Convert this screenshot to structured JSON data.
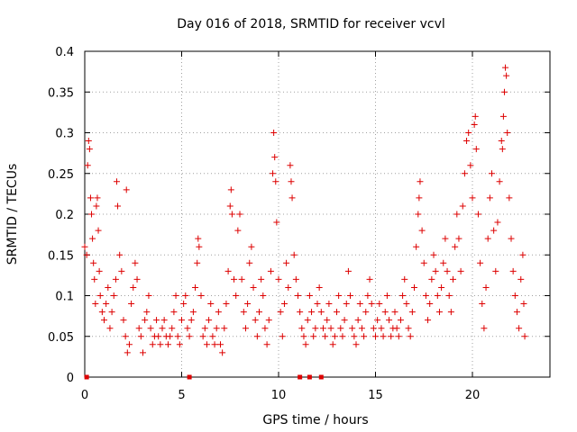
{
  "chart_data": {
    "type": "scatter",
    "title": "Day 016 of 2018, SRMTID for receiver vcvl",
    "xlabel": "GPS time / hours",
    "ylabel": "SRMTID / TECUs",
    "xlim": [
      0,
      24
    ],
    "ylim": [
      0,
      0.4
    ],
    "xticks": [
      0,
      5,
      10,
      15,
      20
    ],
    "xtick_labels": [
      "0",
      "5",
      "10",
      "15",
      "20"
    ],
    "yticks": [
      0,
      0.05,
      0.1,
      0.15,
      0.2,
      0.25,
      0.3,
      0.35,
      0.4
    ],
    "ytick_labels": [
      "0",
      "0.05",
      "0.1",
      "0.15",
      "0.2",
      "0.25",
      "0.3",
      "0.35",
      "0.4"
    ],
    "grid": true,
    "series": [
      {
        "name": "SRMTID",
        "color": "#dd0000",
        "marker": "plus",
        "points": [
          [
            0.0,
            0.16
          ],
          [
            0.1,
            0.15
          ],
          [
            0.15,
            0.26
          ],
          [
            0.2,
            0.29
          ],
          [
            0.25,
            0.28
          ],
          [
            0.3,
            0.22
          ],
          [
            0.35,
            0.2
          ],
          [
            0.4,
            0.17
          ],
          [
            0.45,
            0.14
          ],
          [
            0.5,
            0.12
          ],
          [
            0.55,
            0.09
          ],
          [
            0.6,
            0.21
          ],
          [
            0.65,
            0.22
          ],
          [
            0.7,
            0.18
          ],
          [
            0.75,
            0.13
          ],
          [
            0.8,
            0.1
          ],
          [
            0.9,
            0.08
          ],
          [
            1.0,
            0.07
          ],
          [
            1.1,
            0.09
          ],
          [
            1.2,
            0.11
          ],
          [
            1.3,
            0.06
          ],
          [
            1.4,
            0.08
          ],
          [
            1.5,
            0.1
          ],
          [
            1.6,
            0.12
          ],
          [
            1.65,
            0.24
          ],
          [
            1.7,
            0.21
          ],
          [
            1.8,
            0.15
          ],
          [
            1.9,
            0.13
          ],
          [
            2.0,
            0.07
          ],
          [
            2.1,
            0.05
          ],
          [
            2.15,
            0.23
          ],
          [
            2.2,
            0.03
          ],
          [
            2.3,
            0.04
          ],
          [
            2.4,
            0.09
          ],
          [
            2.5,
            0.11
          ],
          [
            2.6,
            0.14
          ],
          [
            2.7,
            0.12
          ],
          [
            2.8,
            0.06
          ],
          [
            2.9,
            0.05
          ],
          [
            3.0,
            0.03
          ],
          [
            3.1,
            0.07
          ],
          [
            3.2,
            0.08
          ],
          [
            3.3,
            0.1
          ],
          [
            3.4,
            0.06
          ],
          [
            3.5,
            0.04
          ],
          [
            3.6,
            0.05
          ],
          [
            3.7,
            0.07
          ],
          [
            3.8,
            0.05
          ],
          [
            3.9,
            0.04
          ],
          [
            4.0,
            0.06
          ],
          [
            4.1,
            0.07
          ],
          [
            4.2,
            0.05
          ],
          [
            4.3,
            0.04
          ],
          [
            4.4,
            0.05
          ],
          [
            4.5,
            0.06
          ],
          [
            4.6,
            0.08
          ],
          [
            4.7,
            0.1
          ],
          [
            4.8,
            0.05
          ],
          [
            4.9,
            0.04
          ],
          [
            5.0,
            0.07
          ],
          [
            5.1,
            0.09
          ],
          [
            5.2,
            0.1
          ],
          [
            5.3,
            0.06
          ],
          [
            5.4,
            0.05
          ],
          [
            5.5,
            0.07
          ],
          [
            5.6,
            0.08
          ],
          [
            5.7,
            0.11
          ],
          [
            5.8,
            0.14
          ],
          [
            5.85,
            0.17
          ],
          [
            5.9,
            0.16
          ],
          [
            6.0,
            0.1
          ],
          [
            6.1,
            0.05
          ],
          [
            6.2,
            0.06
          ],
          [
            6.3,
            0.04
          ],
          [
            6.4,
            0.07
          ],
          [
            6.5,
            0.09
          ],
          [
            6.6,
            0.05
          ],
          [
            6.7,
            0.04
          ],
          [
            6.8,
            0.06
          ],
          [
            6.9,
            0.08
          ],
          [
            7.0,
            0.04
          ],
          [
            7.1,
            0.03
          ],
          [
            7.2,
            0.06
          ],
          [
            7.3,
            0.09
          ],
          [
            7.4,
            0.13
          ],
          [
            7.5,
            0.21
          ],
          [
            7.55,
            0.23
          ],
          [
            7.6,
            0.2
          ],
          [
            7.7,
            0.12
          ],
          [
            7.8,
            0.1
          ],
          [
            7.9,
            0.18
          ],
          [
            8.0,
            0.2
          ],
          [
            8.1,
            0.12
          ],
          [
            8.2,
            0.08
          ],
          [
            8.3,
            0.06
          ],
          [
            8.4,
            0.09
          ],
          [
            8.5,
            0.14
          ],
          [
            8.6,
            0.16
          ],
          [
            8.7,
            0.11
          ],
          [
            8.8,
            0.07
          ],
          [
            8.9,
            0.05
          ],
          [
            9.0,
            0.08
          ],
          [
            9.1,
            0.12
          ],
          [
            9.2,
            0.1
          ],
          [
            9.3,
            0.06
          ],
          [
            9.4,
            0.04
          ],
          [
            9.5,
            0.07
          ],
          [
            9.6,
            0.13
          ],
          [
            9.7,
            0.25
          ],
          [
            9.75,
            0.3
          ],
          [
            9.8,
            0.27
          ],
          [
            9.85,
            0.24
          ],
          [
            9.9,
            0.19
          ],
          [
            10.0,
            0.12
          ],
          [
            10.1,
            0.08
          ],
          [
            10.2,
            0.05
          ],
          [
            10.3,
            0.09
          ],
          [
            10.4,
            0.14
          ],
          [
            10.5,
            0.11
          ],
          [
            10.6,
            0.26
          ],
          [
            10.65,
            0.24
          ],
          [
            10.7,
            0.22
          ],
          [
            10.8,
            0.15
          ],
          [
            10.9,
            0.12
          ],
          [
            11.0,
            0.1
          ],
          [
            11.1,
            0.08
          ],
          [
            11.2,
            0.06
          ],
          [
            11.3,
            0.05
          ],
          [
            11.4,
            0.04
          ],
          [
            11.5,
            0.07
          ],
          [
            11.6,
            0.1
          ],
          [
            11.7,
            0.08
          ],
          [
            11.8,
            0.05
          ],
          [
            11.9,
            0.06
          ],
          [
            12.0,
            0.09
          ],
          [
            12.1,
            0.11
          ],
          [
            12.2,
            0.08
          ],
          [
            12.3,
            0.06
          ],
          [
            12.4,
            0.05
          ],
          [
            12.5,
            0.07
          ],
          [
            12.6,
            0.09
          ],
          [
            12.7,
            0.06
          ],
          [
            12.8,
            0.04
          ],
          [
            12.9,
            0.05
          ],
          [
            13.0,
            0.08
          ],
          [
            13.1,
            0.1
          ],
          [
            13.2,
            0.06
          ],
          [
            13.3,
            0.05
          ],
          [
            13.4,
            0.07
          ],
          [
            13.5,
            0.09
          ],
          [
            13.6,
            0.13
          ],
          [
            13.7,
            0.1
          ],
          [
            13.8,
            0.06
          ],
          [
            13.9,
            0.05
          ],
          [
            14.0,
            0.04
          ],
          [
            14.1,
            0.07
          ],
          [
            14.2,
            0.09
          ],
          [
            14.3,
            0.06
          ],
          [
            14.4,
            0.05
          ],
          [
            14.5,
            0.08
          ],
          [
            14.6,
            0.1
          ],
          [
            14.7,
            0.12
          ],
          [
            14.8,
            0.09
          ],
          [
            14.9,
            0.06
          ],
          [
            15.0,
            0.05
          ],
          [
            15.1,
            0.07
          ],
          [
            15.2,
            0.09
          ],
          [
            15.3,
            0.06
          ],
          [
            15.4,
            0.05
          ],
          [
            15.5,
            0.08
          ],
          [
            15.6,
            0.1
          ],
          [
            15.7,
            0.07
          ],
          [
            15.8,
            0.05
          ],
          [
            15.9,
            0.06
          ],
          [
            16.0,
            0.08
          ],
          [
            16.1,
            0.06
          ],
          [
            16.2,
            0.05
          ],
          [
            16.3,
            0.07
          ],
          [
            16.4,
            0.1
          ],
          [
            16.5,
            0.12
          ],
          [
            16.6,
            0.09
          ],
          [
            16.7,
            0.06
          ],
          [
            16.8,
            0.05
          ],
          [
            16.9,
            0.08
          ],
          [
            17.0,
            0.11
          ],
          [
            17.1,
            0.16
          ],
          [
            17.2,
            0.2
          ],
          [
            17.25,
            0.22
          ],
          [
            17.3,
            0.24
          ],
          [
            17.4,
            0.18
          ],
          [
            17.5,
            0.14
          ],
          [
            17.6,
            0.1
          ],
          [
            17.7,
            0.07
          ],
          [
            17.8,
            0.09
          ],
          [
            17.9,
            0.12
          ],
          [
            18.0,
            0.15
          ],
          [
            18.1,
            0.13
          ],
          [
            18.2,
            0.1
          ],
          [
            18.3,
            0.08
          ],
          [
            18.4,
            0.11
          ],
          [
            18.5,
            0.14
          ],
          [
            18.6,
            0.17
          ],
          [
            18.7,
            0.13
          ],
          [
            18.8,
            0.1
          ],
          [
            18.9,
            0.08
          ],
          [
            19.0,
            0.12
          ],
          [
            19.1,
            0.16
          ],
          [
            19.2,
            0.2
          ],
          [
            19.3,
            0.17
          ],
          [
            19.4,
            0.13
          ],
          [
            19.5,
            0.21
          ],
          [
            19.6,
            0.25
          ],
          [
            19.7,
            0.29
          ],
          [
            19.8,
            0.3
          ],
          [
            19.9,
            0.26
          ],
          [
            20.0,
            0.22
          ],
          [
            20.1,
            0.31
          ],
          [
            20.15,
            0.32
          ],
          [
            20.2,
            0.28
          ],
          [
            20.3,
            0.2
          ],
          [
            20.4,
            0.14
          ],
          [
            20.5,
            0.09
          ],
          [
            20.6,
            0.06
          ],
          [
            20.7,
            0.11
          ],
          [
            20.8,
            0.17
          ],
          [
            20.9,
            0.22
          ],
          [
            21.0,
            0.25
          ],
          [
            21.1,
            0.18
          ],
          [
            21.2,
            0.13
          ],
          [
            21.3,
            0.19
          ],
          [
            21.4,
            0.24
          ],
          [
            21.5,
            0.29
          ],
          [
            21.55,
            0.28
          ],
          [
            21.6,
            0.32
          ],
          [
            21.65,
            0.35
          ],
          [
            21.7,
            0.38
          ],
          [
            21.75,
            0.37
          ],
          [
            21.8,
            0.3
          ],
          [
            21.9,
            0.22
          ],
          [
            22.0,
            0.17
          ],
          [
            22.1,
            0.13
          ],
          [
            22.2,
            0.1
          ],
          [
            22.3,
            0.08
          ],
          [
            22.4,
            0.06
          ],
          [
            22.5,
            0.12
          ],
          [
            22.6,
            0.15
          ],
          [
            22.65,
            0.09
          ],
          [
            22.7,
            0.05
          ],
          [
            0.1,
            0.0
          ],
          [
            5.4,
            0.0
          ],
          [
            11.1,
            0.0
          ],
          [
            11.6,
            0.0
          ],
          [
            12.2,
            0.0
          ]
        ]
      }
    ]
  }
}
